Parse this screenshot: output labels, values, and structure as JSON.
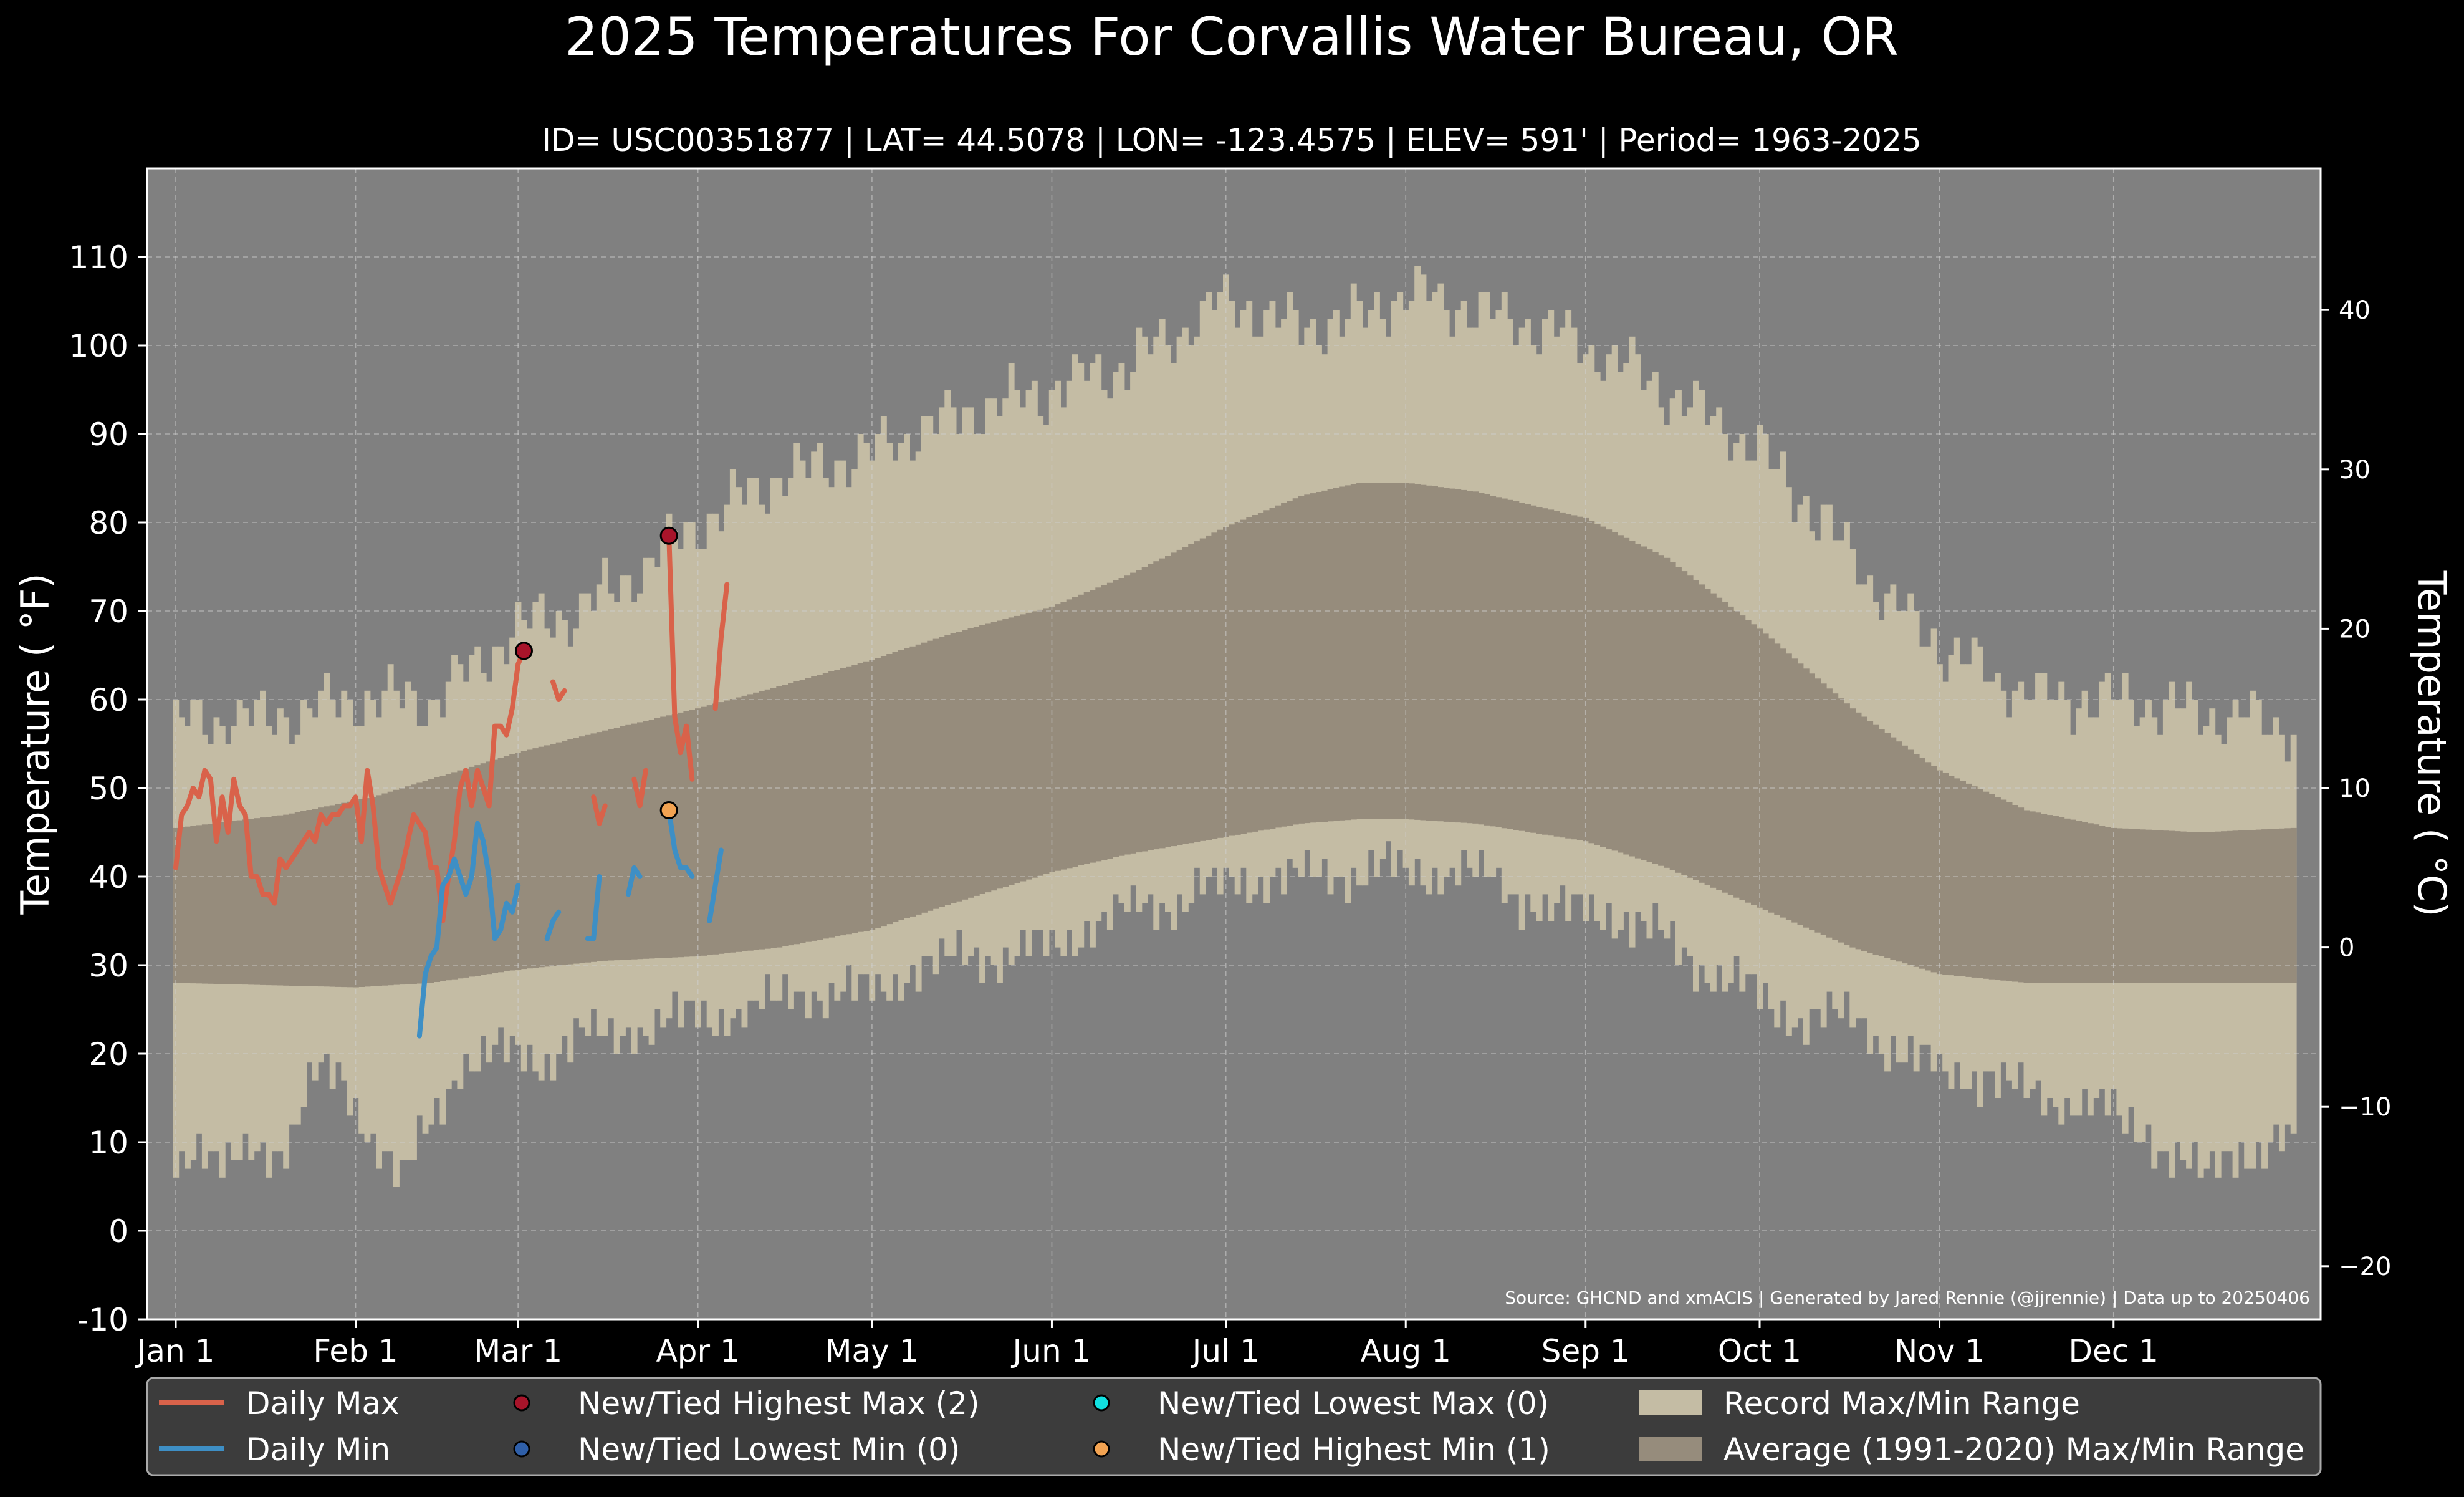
{
  "chart_data": {
    "type": "area",
    "title": "2025 Temperatures For Corvallis Water Bureau, OR",
    "subtitle": "ID= USC00351877 | LAT= 44.5078 | LON= -123.4575 | ELEV= 591' | Period= 1963-2025",
    "ylabel": "Temperature ($^\\circ$F)",
    "ylabel_display": "Temperature ( °F)",
    "ylabel_right_display": "Temperature ( °C)",
    "source": "Source: GHCND and xmACIS | Generated by Jared Rennie (@jjrennie) | Data up to 20250406",
    "ylim": [
      -10,
      120
    ],
    "xlim": [
      0,
      366
    ],
    "grid": true,
    "legend_placement": "bottom",
    "y_ticks": [
      -10,
      0,
      10,
      20,
      30,
      40,
      50,
      60,
      70,
      80,
      90,
      100,
      110
    ],
    "y2_ticks": [
      -20,
      -10,
      0,
      10,
      20,
      30,
      40
    ],
    "x_ticks": [
      {
        "day": 1,
        "label": "Jan 1"
      },
      {
        "day": 32,
        "label": "Feb 1"
      },
      {
        "day": 60,
        "label": "Mar 1"
      },
      {
        "day": 91,
        "label": "Apr 1"
      },
      {
        "day": 121,
        "label": "May 1"
      },
      {
        "day": 152,
        "label": "Jun 1"
      },
      {
        "day": 182,
        "label": "Jul 1"
      },
      {
        "day": 213,
        "label": "Aug 1"
      },
      {
        "day": 244,
        "label": "Sep 1"
      },
      {
        "day": 274,
        "label": "Oct 1"
      },
      {
        "day": 305,
        "label": "Nov 1"
      },
      {
        "day": 335,
        "label": "Dec 1"
      }
    ],
    "record_max_anchors": [
      [
        1,
        57
      ],
      [
        10,
        58
      ],
      [
        20,
        58
      ],
      [
        32,
        60
      ],
      [
        45,
        60
      ],
      [
        55,
        65
      ],
      [
        60,
        68
      ],
      [
        70,
        70
      ],
      [
        80,
        74
      ],
      [
        91,
        80
      ],
      [
        105,
        85
      ],
      [
        121,
        88
      ],
      [
        135,
        92
      ],
      [
        152,
        95
      ],
      [
        165,
        98
      ],
      [
        175,
        102
      ],
      [
        182,
        105
      ],
      [
        195,
        102
      ],
      [
        205,
        103
      ],
      [
        213,
        106
      ],
      [
        225,
        104
      ],
      [
        236,
        102
      ],
      [
        244,
        100
      ],
      [
        255,
        96
      ],
      [
        265,
        92
      ],
      [
        274,
        88
      ],
      [
        285,
        80
      ],
      [
        295,
        72
      ],
      [
        305,
        66
      ],
      [
        315,
        62
      ],
      [
        325,
        60
      ],
      [
        335,
        60
      ],
      [
        345,
        59
      ],
      [
        355,
        58
      ],
      [
        366,
        57
      ]
    ],
    "record_min_anchors": [
      [
        1,
        8
      ],
      [
        5,
        10
      ],
      [
        10,
        7
      ],
      [
        20,
        10
      ],
      [
        25,
        18
      ],
      [
        30,
        16
      ],
      [
        35,
        11
      ],
      [
        40,
        6
      ],
      [
        45,
        12
      ],
      [
        50,
        19
      ],
      [
        55,
        20
      ],
      [
        60,
        20
      ],
      [
        65,
        19
      ],
      [
        70,
        22
      ],
      [
        75,
        22
      ],
      [
        80,
        23
      ],
      [
        91,
        24
      ],
      [
        100,
        25
      ],
      [
        110,
        27
      ],
      [
        121,
        27
      ],
      [
        130,
        30
      ],
      [
        140,
        31
      ],
      [
        152,
        32
      ],
      [
        160,
        35
      ],
      [
        170,
        37
      ],
      [
        182,
        39
      ],
      [
        190,
        40
      ],
      [
        200,
        40
      ],
      [
        210,
        41
      ],
      [
        213,
        40
      ],
      [
        222,
        41
      ],
      [
        232,
        38
      ],
      [
        240,
        36
      ],
      [
        248,
        36
      ],
      [
        255,
        34
      ],
      [
        262,
        31
      ],
      [
        270,
        28
      ],
      [
        275,
        26
      ],
      [
        280,
        24
      ],
      [
        290,
        24
      ],
      [
        298,
        20
      ],
      [
        305,
        18
      ],
      [
        310,
        18
      ],
      [
        318,
        16
      ],
      [
        325,
        15
      ],
      [
        330,
        14
      ],
      [
        340,
        12
      ],
      [
        345,
        8
      ],
      [
        350,
        6
      ],
      [
        355,
        10
      ],
      [
        360,
        8
      ],
      [
        366,
        10
      ]
    ],
    "avg_max_anchors": [
      [
        1,
        45.5
      ],
      [
        20,
        47
      ],
      [
        35,
        49
      ],
      [
        50,
        52
      ],
      [
        60,
        54
      ],
      [
        75,
        56.5
      ],
      [
        91,
        59
      ],
      [
        105,
        61.5
      ],
      [
        121,
        64.5
      ],
      [
        135,
        67.5
      ],
      [
        152,
        70.5
      ],
      [
        165,
        74
      ],
      [
        182,
        79.5
      ],
      [
        195,
        83
      ],
      [
        205,
        84.5
      ],
      [
        213,
        84.5
      ],
      [
        225,
        83.5
      ],
      [
        244,
        80.5
      ],
      [
        258,
        76
      ],
      [
        274,
        68
      ],
      [
        290,
        59
      ],
      [
        305,
        52
      ],
      [
        320,
        47.5
      ],
      [
        335,
        45.5
      ],
      [
        350,
        45
      ],
      [
        366,
        45.5
      ]
    ],
    "avg_min_anchors": [
      [
        1,
        28
      ],
      [
        32,
        27.5
      ],
      [
        45,
        28
      ],
      [
        60,
        29.5
      ],
      [
        75,
        30.5
      ],
      [
        91,
        31
      ],
      [
        105,
        32
      ],
      [
        121,
        34
      ],
      [
        135,
        37
      ],
      [
        152,
        40.5
      ],
      [
        165,
        42.5
      ],
      [
        182,
        44.5
      ],
      [
        195,
        46
      ],
      [
        205,
        46.5
      ],
      [
        213,
        46.5
      ],
      [
        225,
        46
      ],
      [
        244,
        44
      ],
      [
        258,
        41
      ],
      [
        274,
        36.5
      ],
      [
        290,
        32
      ],
      [
        305,
        29
      ],
      [
        320,
        28
      ],
      [
        335,
        28
      ],
      [
        366,
        28
      ]
    ],
    "series": [
      {
        "name": "Daily Max",
        "color": "#d9624a",
        "segments": [
          [
            [
              1,
              41
            ],
            [
              2,
              47
            ],
            [
              3,
              48
            ],
            [
              4,
              50
            ],
            [
              5,
              49
            ],
            [
              6,
              52
            ],
            [
              7,
              51
            ],
            [
              8,
              44
            ],
            [
              9,
              49
            ],
            [
              10,
              45
            ],
            [
              11,
              51
            ],
            [
              12,
              48
            ],
            [
              13,
              47
            ],
            [
              14,
              40
            ],
            [
              15,
              40
            ],
            [
              16,
              38
            ],
            [
              17,
              38
            ],
            [
              18,
              37
            ],
            [
              19,
              42
            ],
            [
              20,
              41
            ],
            [
              21,
              42
            ],
            [
              22,
              43
            ],
            [
              23,
              44
            ],
            [
              24,
              45
            ],
            [
              25,
              44
            ],
            [
              26,
              47
            ],
            [
              27,
              46
            ],
            [
              28,
              47
            ],
            [
              29,
              47
            ],
            [
              30,
              48
            ],
            [
              31,
              48
            ],
            [
              32,
              49
            ],
            [
              33,
              44
            ],
            [
              34,
              52
            ],
            [
              35,
              48
            ],
            [
              36,
              41
            ],
            [
              37,
              39
            ],
            [
              38,
              37
            ],
            [
              39,
              39
            ],
            [
              40,
              41
            ],
            [
              41,
              44
            ],
            [
              42,
              47
            ],
            [
              43,
              46
            ],
            [
              44,
              45
            ],
            [
              45,
              41
            ],
            [
              46,
              41
            ],
            [
              47,
              35
            ],
            [
              48,
              40
            ],
            [
              49,
              44
            ],
            [
              50,
              50
            ],
            [
              51,
              52
            ],
            [
              52,
              48
            ],
            [
              53,
              52
            ],
            [
              54,
              50
            ],
            [
              55,
              48
            ],
            [
              56,
              57
            ],
            [
              57,
              57
            ],
            [
              58,
              56
            ],
            [
              59,
              59
            ],
            [
              60,
              64
            ],
            [
              61,
              65.5
            ]
          ],
          [
            [
              66,
              62
            ],
            [
              67,
              60
            ],
            [
              68,
              61
            ]
          ],
          [
            [
              73,
              49
            ],
            [
              74,
              46
            ],
            [
              75,
              48
            ]
          ],
          [
            [
              80,
              51
            ],
            [
              81,
              48
            ],
            [
              82,
              52
            ]
          ],
          [
            [
              86,
              78.5
            ],
            [
              87,
              58
            ],
            [
              88,
              54
            ],
            [
              89,
              57
            ],
            [
              90,
              51
            ]
          ],
          [
            [
              94,
              59
            ],
            [
              95,
              67
            ],
            [
              96,
              73
            ]
          ]
        ]
      },
      {
        "name": "Daily Min",
        "color": "#3e8fc5",
        "segments": [
          [
            [
              43,
              22
            ],
            [
              44,
              29
            ],
            [
              45,
              31
            ],
            [
              46,
              32
            ],
            [
              47,
              39
            ],
            [
              48,
              40
            ],
            [
              49,
              42
            ],
            [
              50,
              40
            ],
            [
              51,
              38
            ],
            [
              52,
              40
            ],
            [
              53,
              46
            ],
            [
              54,
              44
            ],
            [
              55,
              40
            ],
            [
              56,
              33
            ],
            [
              57,
              34
            ],
            [
              58,
              37
            ],
            [
              59,
              36
            ],
            [
              60,
              39
            ]
          ],
          [
            [
              65,
              33
            ],
            [
              66,
              35
            ],
            [
              67,
              36
            ]
          ],
          [
            [
              72,
              33
            ],
            [
              73,
              33
            ],
            [
              74,
              40
            ]
          ],
          [
            [
              79,
              38
            ],
            [
              80,
              41
            ],
            [
              81,
              40
            ]
          ],
          [
            [
              86,
              47.5
            ],
            [
              87,
              43
            ],
            [
              88,
              41
            ],
            [
              89,
              41
            ],
            [
              90,
              40
            ]
          ],
          [
            [
              93,
              35
            ],
            [
              94,
              39
            ],
            [
              95,
              43
            ]
          ]
        ]
      }
    ],
    "record_points": [
      {
        "type": "New/Tied Highest Max",
        "day": 61,
        "value": 65.5,
        "color": "#a8142a"
      },
      {
        "type": "New/Tied Highest Max",
        "day": 86,
        "value": 78.5,
        "color": "#a8142a"
      },
      {
        "type": "New/Tied Highest Min",
        "day": 86,
        "value": 47.5,
        "color": "#f2a352"
      }
    ]
  },
  "colors": {
    "background": "#000000",
    "plot_bg": "#808080",
    "record_range": "#c4bca4",
    "avg_range": "#968c7c",
    "daily_max": "#d9624a",
    "daily_min": "#3e8fc5",
    "legend_bg": "#3c3c3c"
  },
  "legend": {
    "items": [
      {
        "label": "Daily Max",
        "kind": "line",
        "color": "#d9624a"
      },
      {
        "label": "Daily Min",
        "kind": "line",
        "color": "#3e8fc5"
      },
      {
        "label": "New/Tied Highest Max (2)",
        "kind": "dot",
        "color": "#a8142a"
      },
      {
        "label": "New/Tied Lowest Min (0)",
        "kind": "dot",
        "color": "#2f5fa8"
      },
      {
        "label": "New/Tied Lowest Max (0)",
        "kind": "dot",
        "color": "#11e0e0"
      },
      {
        "label": "New/Tied Highest Min (1)",
        "kind": "dot",
        "color": "#f2a352"
      },
      {
        "label": "Record Max/Min Range",
        "kind": "patch",
        "color": "#c4bca4"
      },
      {
        "label": "Average (1991-2020) Max/Min Range",
        "kind": "patch",
        "color": "#968c7c"
      }
    ]
  }
}
